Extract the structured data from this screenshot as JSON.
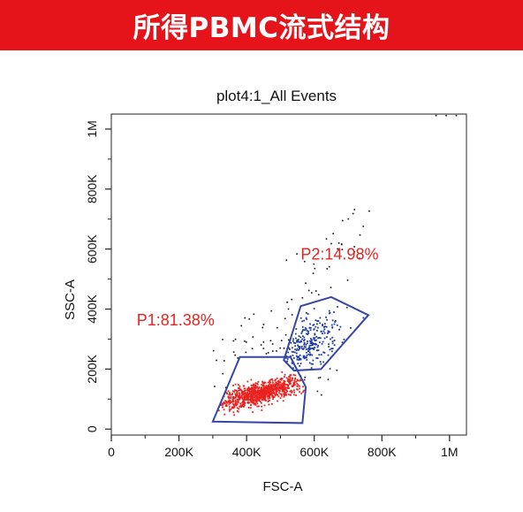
{
  "banner": {
    "title": "所得PBMC流式结构",
    "bg_color": "#e5141b",
    "text_color": "#ffffff"
  },
  "chart_data": {
    "type": "scatter",
    "title": "plot4:1_All Events",
    "xlabel": "FSC-A",
    "ylabel": "SSC-A",
    "xlim": [
      0,
      1050000
    ],
    "ylim": [
      -20000,
      1050000
    ],
    "x_ticks": [
      {
        "value": 0,
        "label": "0"
      },
      {
        "value": 200000,
        "label": "200K"
      },
      {
        "value": 400000,
        "label": "400K"
      },
      {
        "value": 600000,
        "label": "600K"
      },
      {
        "value": 800000,
        "label": "800K"
      },
      {
        "value": 1000000,
        "label": "1M"
      }
    ],
    "y_ticks": [
      {
        "value": 0,
        "label": "0"
      },
      {
        "value": 200000,
        "label": "200K"
      },
      {
        "value": 400000,
        "label": "400K"
      },
      {
        "value": 600000,
        "label": "600K"
      },
      {
        "value": 800000,
        "label": "800K"
      },
      {
        "value": 1000000,
        "label": "1M"
      }
    ],
    "colors": {
      "p1": "#e8231f",
      "p2": "#1f3c9c",
      "other": "#111111",
      "gate": "#3546a6",
      "gate_label": "#e8231f"
    },
    "gates": [
      {
        "name": "P1",
        "label": "P1:81.38%",
        "label_anchor": {
          "x": 75000,
          "y": 345000
        },
        "color": "p1",
        "polygon": [
          [
            300000,
            25000
          ],
          [
            380000,
            240000
          ],
          [
            530000,
            240000
          ],
          [
            575000,
            140000
          ],
          [
            565000,
            20000
          ]
        ],
        "cluster": {
          "n": 900,
          "cx": 440000,
          "cy": 120000,
          "sx": 65000,
          "sy": 25000,
          "rho": 0.72
        }
      },
      {
        "name": "P2",
        "label": "P2:14.98%",
        "label_anchor": {
          "x": 560000,
          "y": 565000
        },
        "color": "p2",
        "polygon": [
          [
            510000,
            230000
          ],
          [
            560000,
            410000
          ],
          [
            650000,
            440000
          ],
          [
            760000,
            380000
          ],
          [
            620000,
            200000
          ],
          [
            540000,
            195000
          ]
        ],
        "cluster": {
          "n": 260,
          "cx": 585000,
          "cy": 285000,
          "sx": 45000,
          "sy": 45000,
          "rho": 0.45
        }
      }
    ],
    "ungated": {
      "color": "other",
      "n": 160
    }
  }
}
